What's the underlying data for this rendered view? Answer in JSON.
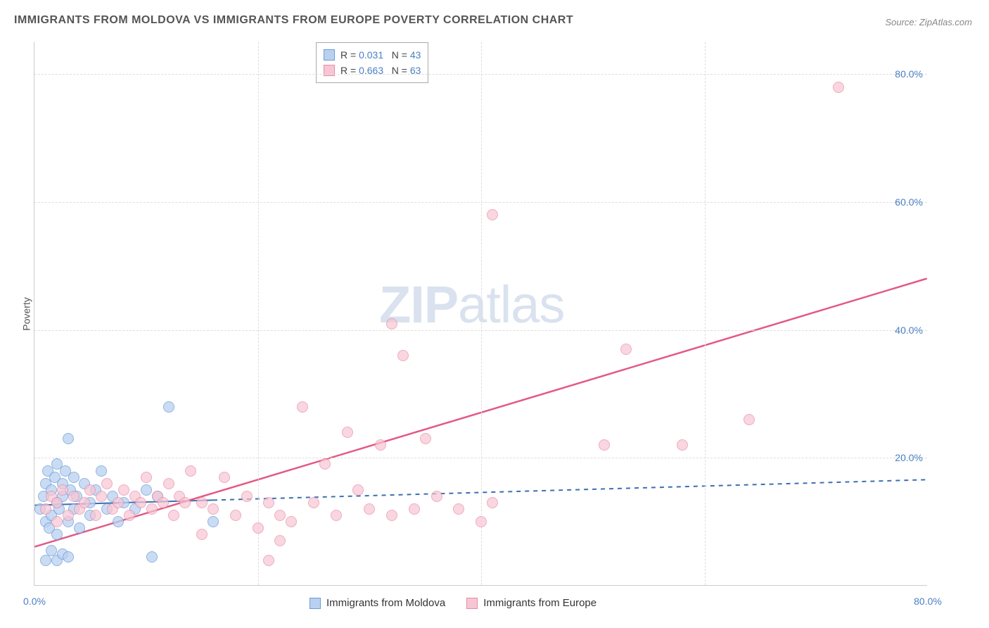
{
  "title": "IMMIGRANTS FROM MOLDOVA VS IMMIGRANTS FROM EUROPE POVERTY CORRELATION CHART",
  "source_prefix": "Source: ",
  "source": "ZipAtlas.com",
  "y_axis_label": "Poverty",
  "watermark_zip": "ZIP",
  "watermark_atlas": "atlas",
  "chart": {
    "type": "scatter",
    "xlim": [
      0,
      80
    ],
    "ylim": [
      0,
      85
    ],
    "x_ticks": [
      0,
      80
    ],
    "x_tick_labels": [
      "0.0%",
      "80.0%"
    ],
    "y_ticks": [
      20,
      40,
      60,
      80
    ],
    "y_tick_labels": [
      "20.0%",
      "40.0%",
      "60.0%",
      "80.0%"
    ],
    "background_color": "#ffffff",
    "grid_color": "#dddddd",
    "axis_color": "#cccccc",
    "tick_label_color": "#4a7fc4",
    "tick_fontsize": 14,
    "marker_radius": 8,
    "series": [
      {
        "name": "Immigrants from Moldova",
        "fill": "#b9d1ef",
        "stroke": "#6b9bd8",
        "fill_opacity": 0.75,
        "R": "0.031",
        "N": "43",
        "trend": {
          "x1": 0,
          "y1": 12.5,
          "x2": 80,
          "y2": 16.5,
          "stroke": "#3b6fb0",
          "width": 2,
          "solid_until_x": 16,
          "dash": "6 6"
        },
        "points": [
          [
            0.5,
            12
          ],
          [
            0.8,
            14
          ],
          [
            1,
            10
          ],
          [
            1,
            16
          ],
          [
            1.2,
            18
          ],
          [
            1.3,
            9
          ],
          [
            1.5,
            11
          ],
          [
            1.5,
            15
          ],
          [
            1.8,
            17
          ],
          [
            2,
            13
          ],
          [
            2,
            19
          ],
          [
            2,
            8
          ],
          [
            2.2,
            12
          ],
          [
            2.5,
            16
          ],
          [
            2.5,
            14
          ],
          [
            2.8,
            18
          ],
          [
            3,
            10
          ],
          [
            3,
            23
          ],
          [
            3.2,
            15
          ],
          [
            3.5,
            12
          ],
          [
            3.5,
            17
          ],
          [
            3.8,
            14
          ],
          [
            4,
            9
          ],
          [
            4.5,
            16
          ],
          [
            5,
            13
          ],
          [
            5,
            11
          ],
          [
            5.5,
            15
          ],
          [
            6,
            18
          ],
          [
            6.5,
            12
          ],
          [
            7,
            14
          ],
          [
            7.5,
            10
          ],
          [
            8,
            13
          ],
          [
            9,
            12
          ],
          [
            10,
            15
          ],
          [
            10.5,
            4.5
          ],
          [
            11,
            14
          ],
          [
            2,
            4
          ],
          [
            2.5,
            5
          ],
          [
            1.5,
            5.5
          ],
          [
            12,
            28
          ],
          [
            16,
            10
          ],
          [
            3,
            4.5
          ],
          [
            1,
            4
          ]
        ]
      },
      {
        "name": "Immigrants from Europe",
        "fill": "#f7c6d4",
        "stroke": "#e88aa6",
        "fill_opacity": 0.7,
        "R": "0.663",
        "N": "63",
        "trend": {
          "x1": 0,
          "y1": 6,
          "x2": 80,
          "y2": 48,
          "stroke": "#e35a84",
          "width": 2.5,
          "solid_until_x": 80,
          "dash": null
        },
        "points": [
          [
            1,
            12
          ],
          [
            1.5,
            14
          ],
          [
            2,
            10
          ],
          [
            2,
            13
          ],
          [
            2.5,
            15
          ],
          [
            3,
            11
          ],
          [
            3.5,
            14
          ],
          [
            4,
            12
          ],
          [
            4.5,
            13
          ],
          [
            5,
            15
          ],
          [
            5.5,
            11
          ],
          [
            6,
            14
          ],
          [
            6.5,
            16
          ],
          [
            7,
            12
          ],
          [
            7.5,
            13
          ],
          [
            8,
            15
          ],
          [
            8.5,
            11
          ],
          [
            9,
            14
          ],
          [
            9.5,
            13
          ],
          [
            10,
            17
          ],
          [
            10.5,
            12
          ],
          [
            11,
            14
          ],
          [
            11.5,
            13
          ],
          [
            12,
            16
          ],
          [
            12.5,
            11
          ],
          [
            13,
            14
          ],
          [
            13.5,
            13
          ],
          [
            14,
            18
          ],
          [
            15,
            13
          ],
          [
            16,
            12
          ],
          [
            17,
            17
          ],
          [
            18,
            11
          ],
          [
            19,
            14
          ],
          [
            20,
            9
          ],
          [
            21,
            13
          ],
          [
            22,
            11
          ],
          [
            23,
            10
          ],
          [
            24,
            28
          ],
          [
            25,
            13
          ],
          [
            26,
            19
          ],
          [
            27,
            11
          ],
          [
            28,
            24
          ],
          [
            29,
            15
          ],
          [
            30,
            12
          ],
          [
            31,
            22
          ],
          [
            32,
            11
          ],
          [
            33,
            36
          ],
          [
            34,
            12
          ],
          [
            35,
            23
          ],
          [
            36,
            14
          ],
          [
            38,
            12
          ],
          [
            40,
            10
          ],
          [
            41,
            13
          ],
          [
            41,
            58
          ],
          [
            32,
            41
          ],
          [
            51,
            22
          ],
          [
            53,
            37
          ],
          [
            58,
            22
          ],
          [
            64,
            26
          ],
          [
            72,
            78
          ],
          [
            21,
            4
          ],
          [
            22,
            7
          ],
          [
            15,
            8
          ]
        ]
      }
    ]
  },
  "legend_top": {
    "R_label": "R =",
    "N_label": "N =",
    "value_color": "#4a7fc4",
    "label_color": "#444444",
    "border_color": "#aaaaaa"
  },
  "legend_bottom": {
    "items": [
      {
        "label": "Immigrants from Moldova",
        "fill": "#b9d1ef",
        "stroke": "#6b9bd8"
      },
      {
        "label": "Immigrants from Europe",
        "fill": "#f7c6d4",
        "stroke": "#e88aa6"
      }
    ]
  }
}
